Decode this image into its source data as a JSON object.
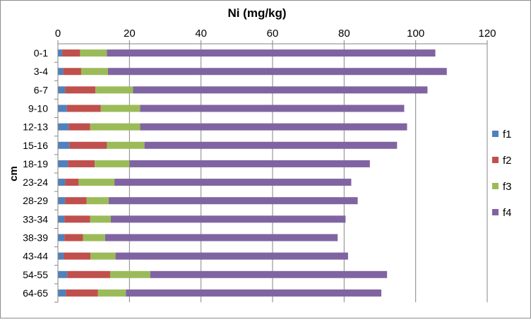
{
  "chart_data": {
    "type": "bar",
    "orientation": "horizontal",
    "stacked": true,
    "title": "Ni (mg/kg)",
    "xlabel": "Ni (mg/kg)",
    "ylabel": "cm",
    "xlim": [
      0,
      120
    ],
    "x_ticks": [
      "0",
      "20",
      "40",
      "60",
      "80",
      "100",
      "120"
    ],
    "x_axis_position": "top",
    "grid": true,
    "legend_position": "right",
    "categories": [
      "0-1",
      "3-4",
      "6-7",
      "9-10",
      "12-13",
      "15-16",
      "18-19",
      "23-24",
      "28-29",
      "33-34",
      "38-39",
      "43-44",
      "54-55",
      "64-65"
    ],
    "series": [
      {
        "name": "f1",
        "color": "#4F81BD",
        "values": [
          1.2,
          1.5,
          2.0,
          2.5,
          3.0,
          3.2,
          2.8,
          2.0,
          2.0,
          1.8,
          1.8,
          1.6,
          2.6,
          2.2
        ]
      },
      {
        "name": "f2",
        "color": "#C0504D",
        "values": [
          5.0,
          5.0,
          8.5,
          9.5,
          6.0,
          10.5,
          7.5,
          3.8,
          6.0,
          7.2,
          5.2,
          7.5,
          12.0,
          9.0
        ]
      },
      {
        "name": "f3",
        "color": "#9BBB59",
        "values": [
          7.5,
          7.5,
          10.5,
          11.0,
          14.0,
          10.5,
          9.7,
          10.0,
          6.2,
          5.8,
          6.2,
          7.0,
          11.2,
          7.8
        ]
      },
      {
        "name": "f4",
        "color": "#8064A2",
        "values": [
          91.8,
          94.7,
          82.3,
          73.8,
          74.6,
          70.6,
          67.2,
          66.2,
          69.6,
          65.6,
          65.0,
          65.0,
          66.2,
          71.4
        ]
      }
    ]
  }
}
